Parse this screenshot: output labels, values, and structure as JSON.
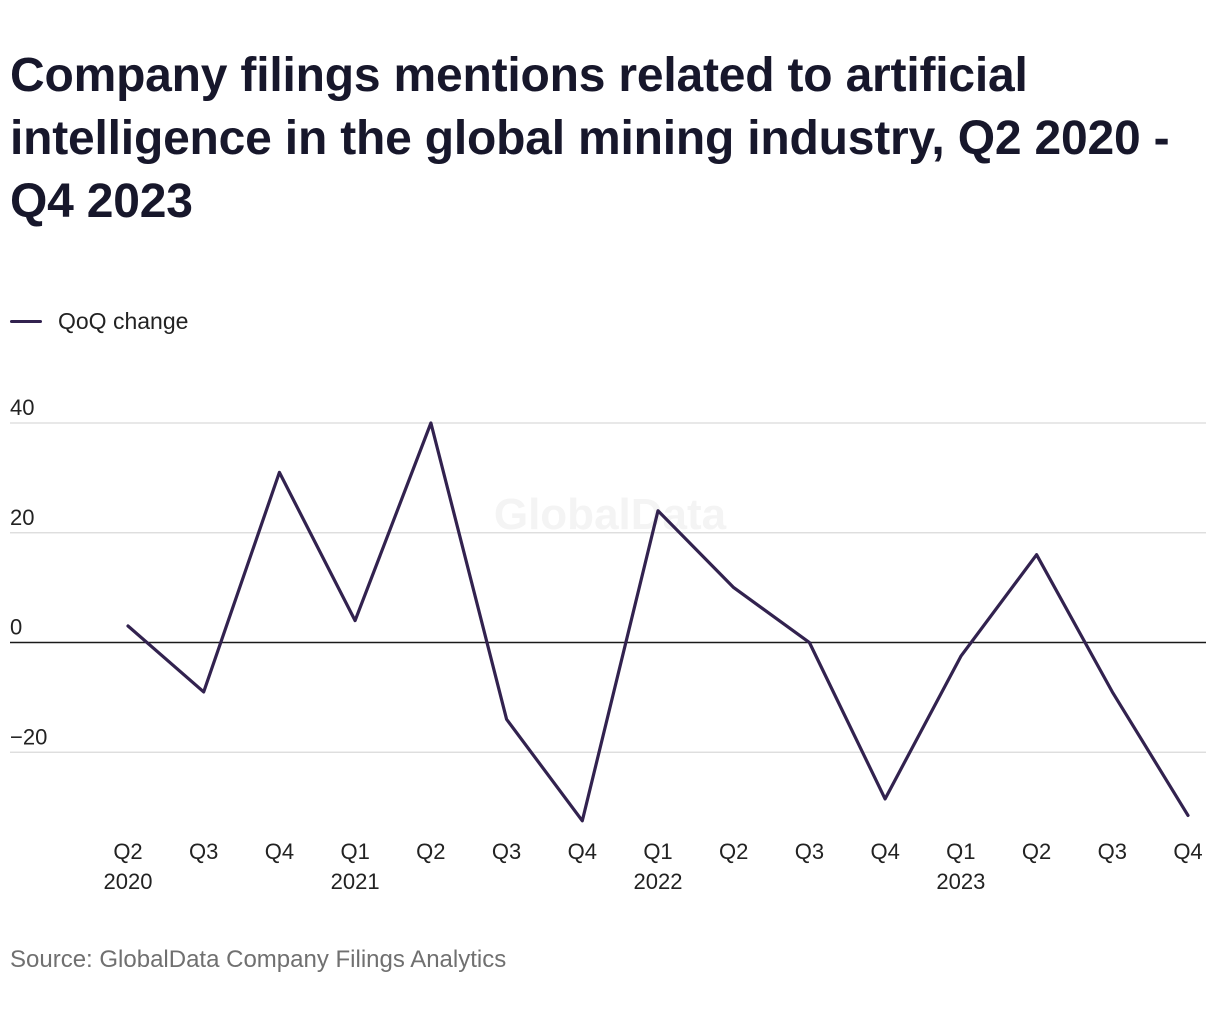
{
  "title": "Company filings mentions related to artificial intelligence in the global mining industry, Q2 2020 - Q4 2023",
  "source": "Source: GlobalData Company Filings Analytics",
  "watermark": "GlobalData",
  "colors": {
    "series": "#32224f",
    "grid": "#d9d9d9",
    "zero_line": "#1a1a1a",
    "text": "#17172b",
    "source": "#707070"
  },
  "chart_data": {
    "type": "line",
    "title": "Company filings mentions related to artificial intelligence in the global mining industry, Q2 2020 - Q4 2023",
    "xlabel": "",
    "ylabel": "",
    "ylim": [
      -33,
      40
    ],
    "yticks": [
      40,
      20,
      0,
      -20
    ],
    "ytick_labels": [
      "40",
      "20",
      "0",
      "−20"
    ],
    "grid": true,
    "legend_position": "top-left",
    "categories": [
      "Q2 2020",
      "Q3 2020",
      "Q4 2020",
      "Q1 2021",
      "Q2 2021",
      "Q3 2021",
      "Q4 2021",
      "Q1 2022",
      "Q2 2022",
      "Q3 2022",
      "Q4 2022",
      "Q1 2023",
      "Q2 2023",
      "Q3 2023",
      "Q4 2023"
    ],
    "tick_labels": [
      {
        "quarter": "Q2",
        "year": "2020"
      },
      {
        "quarter": "Q3",
        "year": ""
      },
      {
        "quarter": "Q4",
        "year": ""
      },
      {
        "quarter": "Q1",
        "year": "2021"
      },
      {
        "quarter": "Q2",
        "year": ""
      },
      {
        "quarter": "Q3",
        "year": ""
      },
      {
        "quarter": "Q4",
        "year": ""
      },
      {
        "quarter": "Q1",
        "year": "2022"
      },
      {
        "quarter": "Q2",
        "year": ""
      },
      {
        "quarter": "Q3",
        "year": ""
      },
      {
        "quarter": "Q4",
        "year": ""
      },
      {
        "quarter": "Q1",
        "year": "2023"
      },
      {
        "quarter": "Q2",
        "year": ""
      },
      {
        "quarter": "Q3",
        "year": ""
      },
      {
        "quarter": "Q4",
        "year": ""
      }
    ],
    "series": [
      {
        "name": "QoQ change",
        "values": [
          3,
          -9,
          31,
          4,
          40,
          -14,
          -32.5,
          24,
          10,
          0,
          -28.5,
          -2.5,
          16,
          -9,
          -31.5
        ]
      }
    ]
  }
}
